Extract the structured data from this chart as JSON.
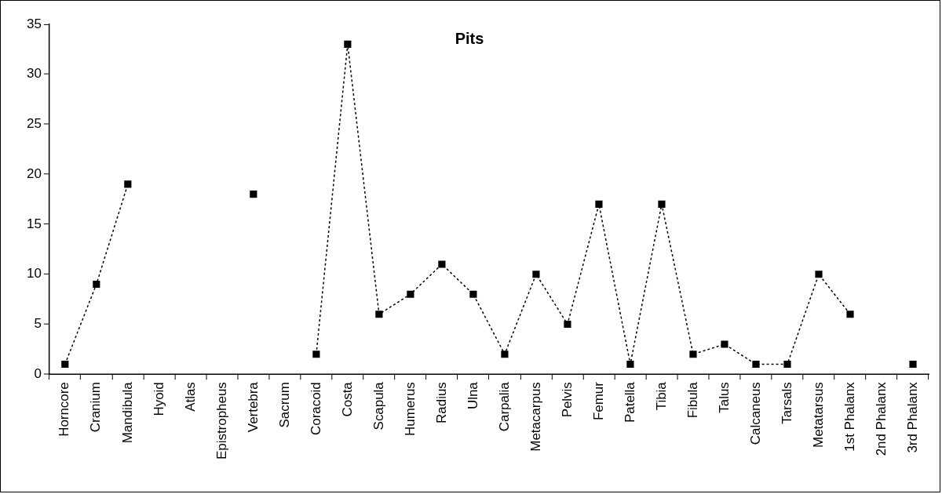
{
  "chart_data": {
    "type": "line",
    "title": "Pits",
    "categories": [
      "Horncore",
      "Cranium",
      "Mandibula",
      "Hyoid",
      "Atlas",
      "Epistropheus",
      "Vertebra",
      "Sacrum",
      "Coracoid",
      "Costa",
      "Scapula",
      "Humerus",
      "Radius",
      "Ulna",
      "Carpalia",
      "Metacarpus",
      "Pelvis",
      "Femur",
      "Patella",
      "Tibia",
      "Fibula",
      "Talus",
      "Calcaneus",
      "Tarsals",
      "Metatarsus",
      "1st Phalanx",
      "2nd Phalanx",
      "3rd Phalanx"
    ],
    "values": [
      1,
      9,
      19,
      null,
      null,
      null,
      18,
      null,
      2,
      33,
      6,
      8,
      11,
      8,
      2,
      10,
      5,
      17,
      1,
      17,
      2,
      3,
      1,
      1,
      10,
      6,
      null,
      1
    ],
    "color": "#000000",
    "marker": "square",
    "line_style": "dotted",
    "ylim": [
      0,
      35
    ],
    "yticks": [
      0,
      5,
      10,
      15,
      20,
      25,
      30,
      35
    ],
    "grid": false,
    "legend": false
  }
}
